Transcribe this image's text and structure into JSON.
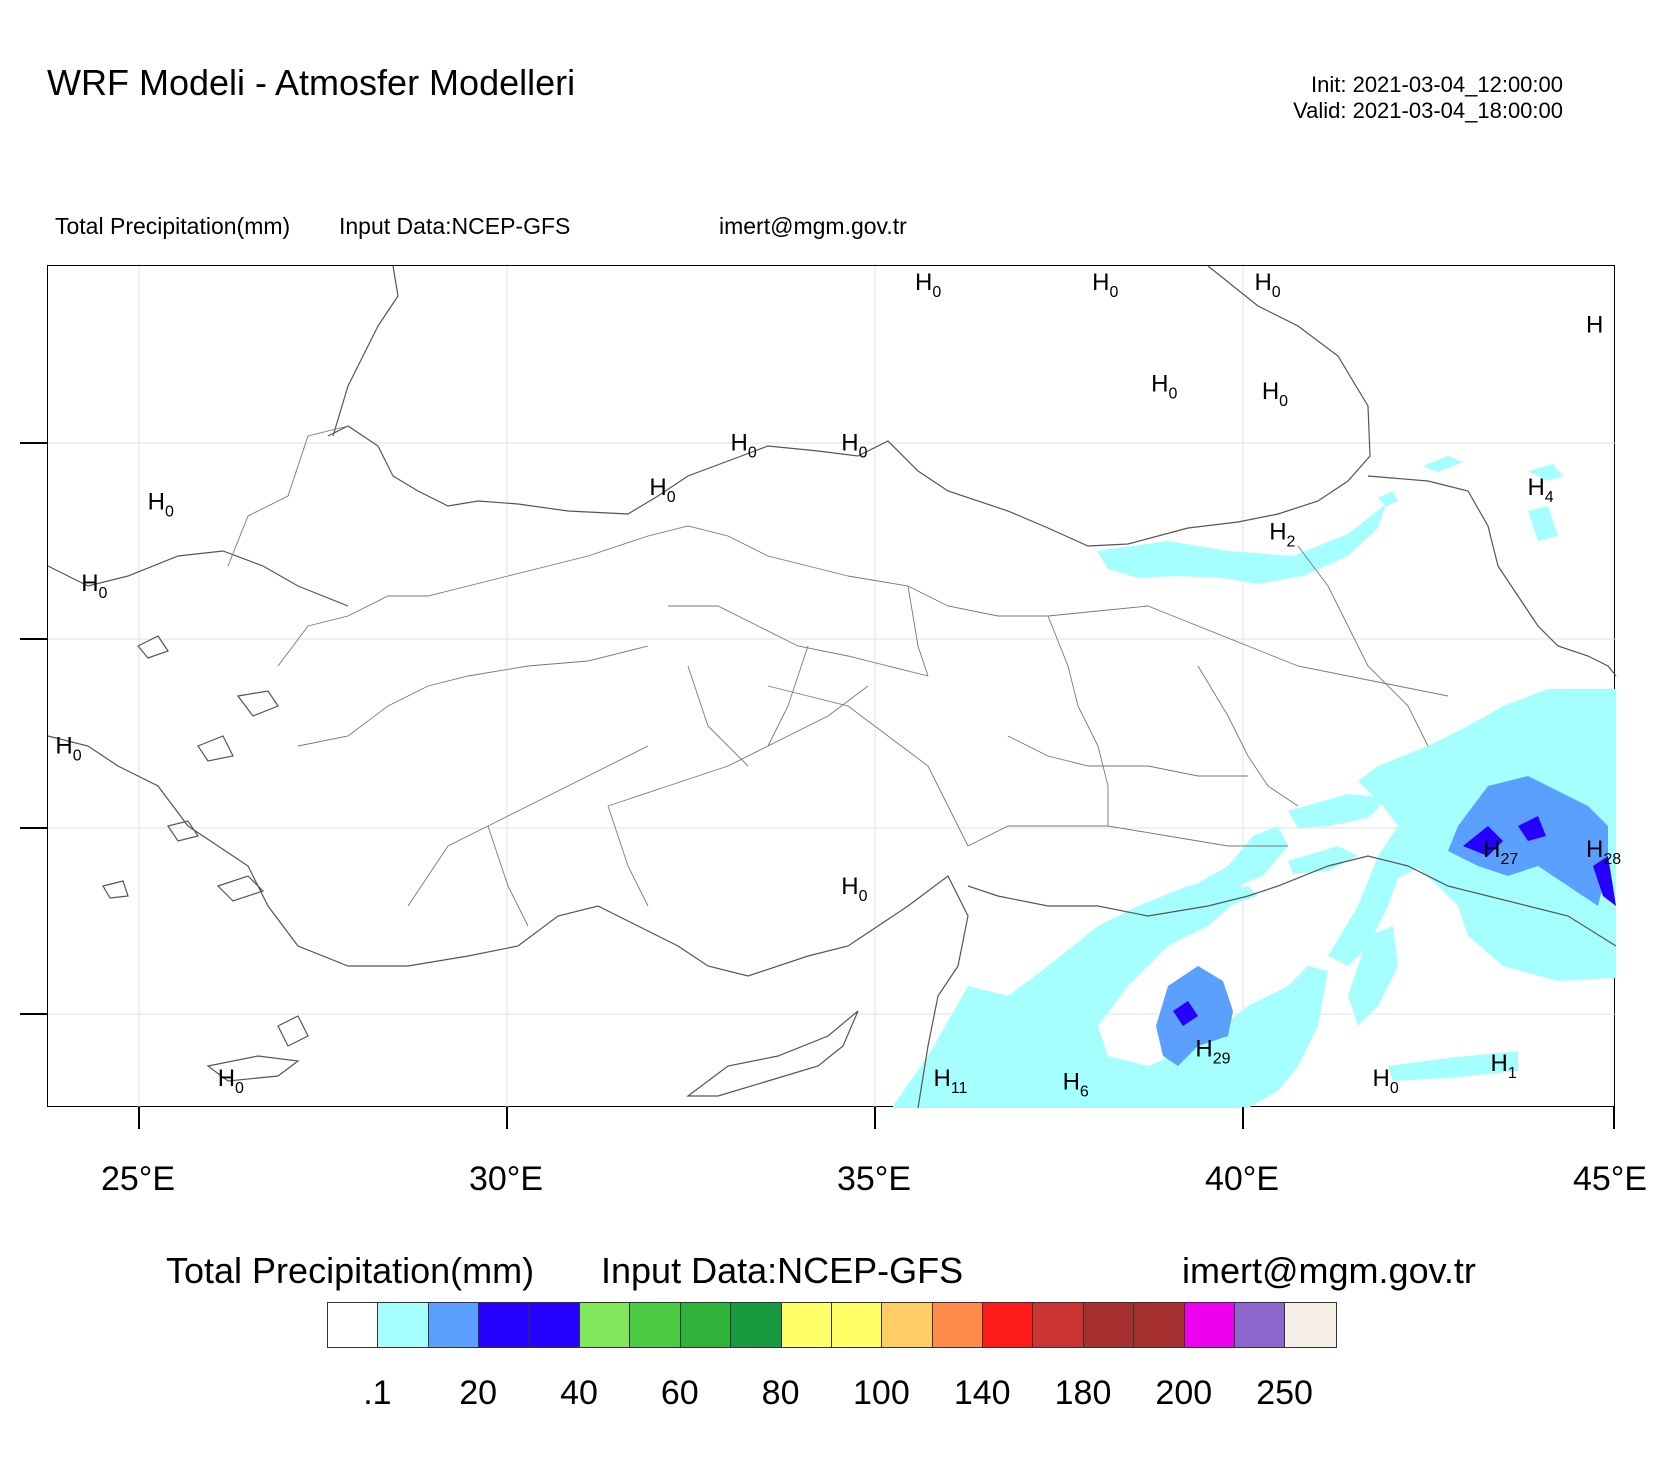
{
  "header": {
    "title": "WRF Modeli - Atmosfer Modelleri",
    "init": "Init: 2021-03-04_12:00:00",
    "valid": "Valid: 2021-03-04_18:00:00"
  },
  "subheader": {
    "field": "Total Precipitation(mm)",
    "input": "Input Data:NCEP-GFS",
    "contact": "imert@mgm.gov.tr"
  },
  "map": {
    "lon_range": [
      23.75,
      45.0
    ],
    "lat_range": [
      34.2,
      45.6
    ],
    "lon_ticks": [
      "25°E",
      "30°E",
      "35°E",
      "40°E",
      "45°E"
    ],
    "highs": [
      {
        "label": "H",
        "value": "0",
        "lon": 35.5,
        "lat": 45.5
      },
      {
        "label": "H",
        "value": "0",
        "lon": 37.9,
        "lat": 45.5
      },
      {
        "label": "H",
        "value": "0",
        "lon": 40.1,
        "lat": 45.4
      },
      {
        "label": "H",
        "value": "",
        "lon": 44.95,
        "lat": 44.7
      },
      {
        "label": "H",
        "value": "0",
        "lon": 38.7,
        "lat": 43.9
      },
      {
        "label": "H",
        "value": "0",
        "lon": 40.2,
        "lat": 43.8
      },
      {
        "label": "H",
        "value": "0",
        "lon": 33.0,
        "lat": 43.1
      },
      {
        "label": "H",
        "value": "0",
        "lon": 34.5,
        "lat": 43.1
      },
      {
        "label": "H",
        "value": "0",
        "lon": 31.9,
        "lat": 42.5
      },
      {
        "label": "H",
        "value": "4",
        "lon": 43.8,
        "lat": 42.5
      },
      {
        "label": "H",
        "value": "0",
        "lon": 25.1,
        "lat": 42.3
      },
      {
        "label": "H",
        "value": "2",
        "lon": 40.3,
        "lat": 41.9
      },
      {
        "label": "H",
        "value": "0",
        "lon": 24.2,
        "lat": 41.2
      },
      {
        "label": "H",
        "value": "0",
        "lon": 23.85,
        "lat": 39.0
      },
      {
        "label": "H",
        "value": "27",
        "lon": 43.2,
        "lat": 37.6
      },
      {
        "label": "H",
        "value": "28",
        "lon": 44.6,
        "lat": 37.6
      },
      {
        "label": "H",
        "value": "0",
        "lon": 34.5,
        "lat": 37.1
      },
      {
        "label": "H",
        "value": "29",
        "lon": 39.3,
        "lat": 34.9
      },
      {
        "label": "H",
        "value": "11",
        "lon": 35.75,
        "lat": 34.5
      },
      {
        "label": "H",
        "value": "6",
        "lon": 37.5,
        "lat": 34.45
      },
      {
        "label": "H",
        "value": "0",
        "lon": 41.7,
        "lat": 34.5
      },
      {
        "label": "H",
        "value": "1",
        "lon": 43.3,
        "lat": 34.7
      },
      {
        "label": "H",
        "value": "0",
        "lon": 26.05,
        "lat": 34.5
      }
    ]
  },
  "legend": {
    "title": "Total Precipitation(mm)",
    "input": "Input Data:NCEP-GFS",
    "contact": "imert@mgm.gov.tr",
    "colors": [
      "#ffffff",
      "#a6ffff",
      "#5ba0ff",
      "#2600ff",
      "#2600ff",
      "#80e65a",
      "#4ccc44",
      "#2fb23a",
      "#1a9a40",
      "#ffff66",
      "#ffff66",
      "#ffcc66",
      "#ff8c4a",
      "#ff1a1a",
      "#cc3333",
      "#a62f2f",
      "#a62f2f",
      "#ee00ee",
      "#8c66cc",
      "#f5efe6"
    ],
    "labels": [
      ".1",
      "20",
      "40",
      "60",
      "80",
      "100",
      "140",
      "180",
      "200",
      "250"
    ]
  }
}
